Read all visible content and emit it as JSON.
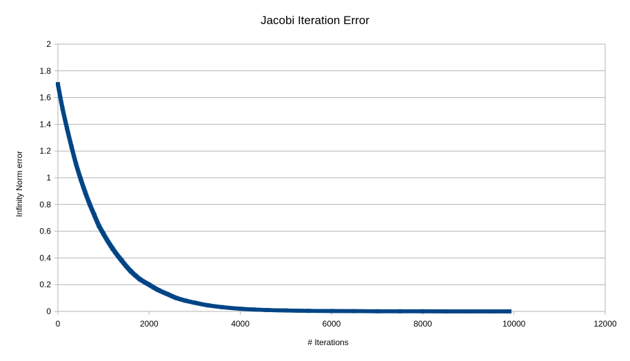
{
  "chart_data": {
    "type": "scatter",
    "title": "Jacobi Iteration Error",
    "xlabel": "# Iterations",
    "ylabel": "Infinity Norm error",
    "xlim": [
      0,
      12000
    ],
    "ylim": [
      0,
      2
    ],
    "x_ticks": [
      "0",
      "2000",
      "4000",
      "6000",
      "8000",
      "10000",
      "12000"
    ],
    "y_ticks": [
      "0",
      "0.2",
      "0.4",
      "0.6",
      "0.8",
      "1",
      "1.2",
      "1.4",
      "1.6",
      "1.8",
      "2"
    ],
    "grid": true,
    "legend": "none",
    "series": [
      {
        "color": "#004586",
        "x": [
          0,
          100,
          200,
          300,
          400,
          500,
          600,
          700,
          800,
          900,
          1000,
          1200,
          1400,
          1600,
          1800,
          2000,
          2200,
          2400,
          2600,
          2800,
          3000,
          3300,
          3600,
          4000,
          4300,
          4600,
          5000,
          5500,
          6000,
          6500,
          7000,
          7500,
          8000,
          8500,
          9000,
          9500,
          9900
        ],
        "y": [
          1.7,
          1.52,
          1.37,
          1.23,
          1.1,
          0.99,
          0.89,
          0.8,
          0.72,
          0.64,
          0.58,
          0.47,
          0.38,
          0.3,
          0.24,
          0.2,
          0.16,
          0.13,
          0.1,
          0.08,
          0.065,
          0.045,
          0.032,
          0.02,
          0.014,
          0.01,
          0.007,
          0.004,
          0.003,
          0.002,
          0.001,
          0.001,
          0.001,
          0.0,
          0.0,
          0.0,
          0.0
        ]
      }
    ]
  }
}
